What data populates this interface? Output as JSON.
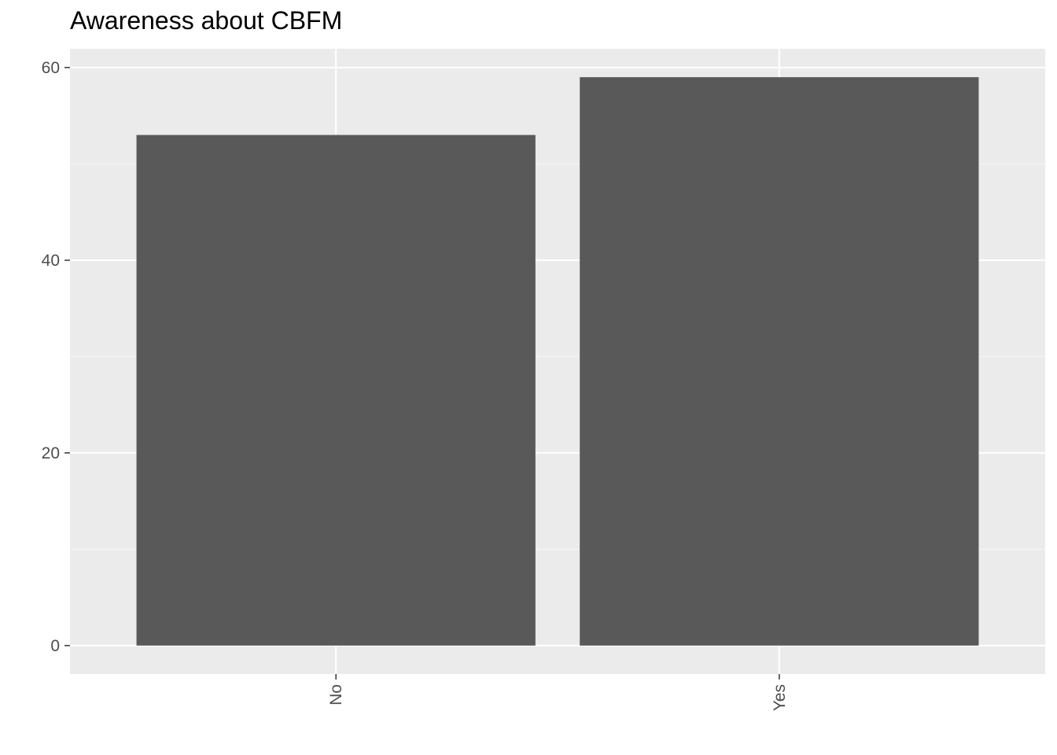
{
  "chart_data": {
    "type": "bar",
    "title": "Awareness about CBFM",
    "xlabel": "",
    "ylabel": "",
    "categories": [
      "No",
      "Yes"
    ],
    "values": [
      53,
      59
    ],
    "ylim": [
      -2.95,
      61.95
    ],
    "yticks": [
      0,
      20,
      40,
      60
    ],
    "grid": true,
    "legend": "none",
    "colors": {
      "bar": "#595959",
      "panel": "#ebebeb",
      "grid_major": "#ffffff",
      "grid_minor": "#f4f4f4",
      "tick_text": "#4d4d4d",
      "tick_mark": "#333333"
    }
  }
}
